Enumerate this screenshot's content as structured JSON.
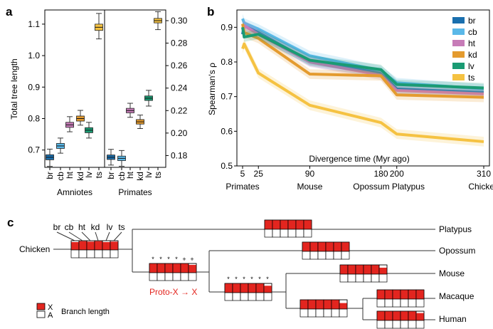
{
  "panels": {
    "a": "a",
    "b": "b",
    "c": "c"
  },
  "chart_data": [
    {
      "type": "box",
      "panel": "a",
      "ylabel": "Total tree length",
      "groups": [
        {
          "name": "Amniotes",
          "axis": "left",
          "ylim": [
            0.645,
            1.145
          ],
          "ticks": [
            0.7,
            0.8,
            0.9,
            1.0,
            1.1
          ],
          "tick_labels": [
            "0.7",
            "0.8",
            "0.9",
            "1.0",
            "1.1"
          ],
          "categories": [
            "br",
            "cb",
            "ht",
            "kd",
            "lv",
            "ts"
          ],
          "boxes": [
            {
              "cat": "br",
              "median": 0.677,
              "q1": 0.669,
              "q3": 0.685,
              "whislo": 0.648,
              "whishi": 0.703
            },
            {
              "cat": "cb",
              "median": 0.713,
              "q1": 0.705,
              "q3": 0.721,
              "whislo": 0.69,
              "whishi": 0.738
            },
            {
              "cat": "ht",
              "median": 0.78,
              "q1": 0.772,
              "q3": 0.788,
              "whislo": 0.758,
              "whishi": 0.806
            },
            {
              "cat": "kd",
              "median": 0.8,
              "q1": 0.792,
              "q3": 0.808,
              "whislo": 0.779,
              "whishi": 0.826
            },
            {
              "cat": "lv",
              "median": 0.763,
              "q1": 0.755,
              "q3": 0.771,
              "whislo": 0.738,
              "whishi": 0.788
            },
            {
              "cat": "ts",
              "median": 1.09,
              "q1": 1.08,
              "q3": 1.1,
              "whislo": 1.053,
              "whishi": 1.134
            }
          ]
        },
        {
          "name": "Primates",
          "axis": "right",
          "ylim": [
            0.1695,
            0.3095
          ],
          "ticks": [
            0.18,
            0.2,
            0.22,
            0.24,
            0.26,
            0.28,
            0.3
          ],
          "tick_labels": [
            "0.18",
            "0.20",
            "0.22",
            "0.24",
            "0.26",
            "0.28",
            "0.30"
          ],
          "categories": [
            "br",
            "cb",
            "ht",
            "kd",
            "lv",
            "ts"
          ],
          "boxes": [
            {
              "cat": "br",
              "median": 0.1785,
              "q1": 0.1765,
              "q3": 0.1805,
              "whislo": 0.1715,
              "whishi": 0.1855
            },
            {
              "cat": "cb",
              "median": 0.1775,
              "q1": 0.1755,
              "q3": 0.1795,
              "whislo": 0.1705,
              "whishi": 0.1845
            },
            {
              "cat": "ht",
              "median": 0.22,
              "q1": 0.218,
              "q3": 0.222,
              "whislo": 0.214,
              "whishi": 0.2265
            },
            {
              "cat": "kd",
              "median": 0.21,
              "q1": 0.208,
              "q3": 0.212,
              "whislo": 0.204,
              "whishi": 0.216
            },
            {
              "cat": "lv",
              "median": 0.231,
              "q1": 0.229,
              "q3": 0.233,
              "whislo": 0.224,
              "whishi": 0.238
            },
            {
              "cat": "ts",
              "median": 0.3,
              "q1": 0.298,
              "q3": 0.302,
              "whislo": 0.292,
              "whishi": 0.308
            }
          ]
        }
      ],
      "colors": {
        "br": "#1a6fae",
        "cb": "#5ab8e8",
        "ht": "#c77cb8",
        "kd": "#e49b2f",
        "lv": "#1a9b73",
        "ts": "#f5c242"
      }
    },
    {
      "type": "line",
      "panel": "b",
      "ylabel": "Spearman's ρ",
      "xlabel": "Divergence time (Myr ago)",
      "ylim": [
        0.5,
        0.95
      ],
      "yticks": [
        0.5,
        0.6,
        0.7,
        0.8,
        0.9
      ],
      "ytick_labels": [
        "0.5",
        "0.6",
        "0.7",
        "0.8",
        "0.9"
      ],
      "xlim": [
        0,
        313
      ],
      "xticks": [
        5,
        25,
        90,
        180,
        200,
        310
      ],
      "xtick_labels": [
        "5",
        "25",
        "90",
        "180",
        "200",
        "310"
      ],
      "species_labels": [
        {
          "x": 5,
          "label": "Primates"
        },
        {
          "x": 90,
          "label": "Mouse"
        },
        {
          "x": 190,
          "label": "Opossum Platypus"
        },
        {
          "x": 310,
          "label": "Chicken"
        }
      ],
      "x": [
        5,
        7,
        25,
        90,
        180,
        200,
        310
      ],
      "series": [
        {
          "name": "br",
          "color": "#1a6fae",
          "values": [
            0.88,
            0.905,
            0.885,
            0.802,
            0.768,
            0.722,
            0.712
          ]
        },
        {
          "name": "cb",
          "color": "#5ab8e8",
          "values": [
            0.925,
            0.912,
            0.895,
            0.818,
            0.775,
            0.74,
            0.722
          ]
        },
        {
          "name": "ht",
          "color": "#c77cb8",
          "values": [
            0.9,
            0.905,
            0.88,
            0.8,
            0.762,
            0.718,
            0.708
          ]
        },
        {
          "name": "kd",
          "color": "#e49b2f",
          "values": [
            0.91,
            0.885,
            0.868,
            0.765,
            0.76,
            0.705,
            0.698
          ]
        },
        {
          "name": "lv",
          "color": "#1a9b73",
          "values": [
            0.9,
            0.872,
            0.88,
            0.805,
            0.778,
            0.735,
            0.725
          ]
        },
        {
          "name": "ts",
          "color": "#f5c242",
          "values": [
            0.838,
            0.852,
            0.768,
            0.675,
            0.625,
            0.592,
            0.57
          ]
        }
      ],
      "legend_position": "top-right"
    }
  ],
  "tree": {
    "tissue_labels": [
      "br",
      "cb",
      "ht",
      "kd",
      "lv",
      "ts"
    ],
    "species": [
      "Chicken",
      "Platypus",
      "Opossum",
      "Mouse",
      "Macaque",
      "Human"
    ],
    "stars": [
      "*",
      "*",
      "*",
      "*",
      "+",
      "+"
    ],
    "stars2": [
      "*",
      "*",
      "*",
      "*",
      "*",
      "*"
    ],
    "transition_label": "Proto-X → X",
    "legend": {
      "x": "X",
      "a": "A",
      "branch_length": "Branch length"
    },
    "x_color": "#e3251f",
    "x_fill_fraction": {
      "chicken": [
        0.85,
        0.95,
        0.9,
        0.95,
        0.85,
        0.9
      ],
      "platypus": [
        1,
        1,
        1,
        1,
        1,
        1
      ],
      "opossum": [
        1,
        1,
        1,
        1,
        1,
        1
      ],
      "mouse": [
        1,
        1,
        1,
        1,
        1,
        0.7
      ],
      "macaque": [
        1,
        1,
        1,
        1,
        1,
        1
      ],
      "human": [
        1,
        1,
        1,
        1,
        1,
        0.8
      ],
      "node_proto": [
        1,
        1,
        1,
        1,
        1,
        0.85
      ],
      "node_euth": [
        1,
        1,
        1,
        1,
        1,
        0.75
      ],
      "node_primate": [
        1,
        1,
        1,
        1,
        1,
        0.65
      ]
    }
  }
}
